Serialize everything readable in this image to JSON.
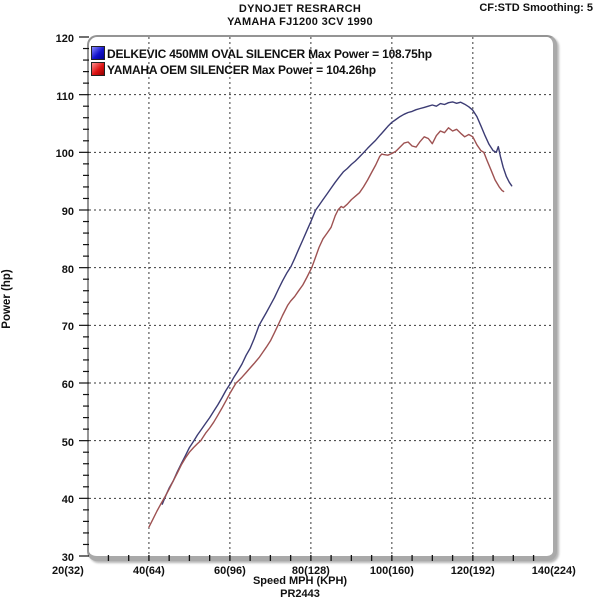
{
  "header": {
    "title": "DYNOJET RESRARCH",
    "subtitle": "YAMAHA FJ1200 3CV 1990",
    "smoothing": "CF:STD Smoothing: 5"
  },
  "chart_data": {
    "type": "line",
    "title": "DYNOJET RESRARCH",
    "subtitle": "YAMAHA FJ1200 3CV 1990",
    "xlabel": "Speed MPH (KPH)",
    "ylabel": "Power (hp)",
    "footer": "PR2443",
    "xlim": [
      25.2,
      139.8
    ],
    "ylim": [
      30,
      120
    ],
    "x_gridlines": [
      40,
      60,
      80,
      100,
      120
    ],
    "y_gridlines": [
      40,
      50,
      60,
      70,
      80,
      90,
      100,
      110
    ],
    "x_minor_step": 5,
    "y_minor_step": 2,
    "y_major_step": 10,
    "grid_color": "#3a3a3a",
    "x_ticks": [
      {
        "mph": 20,
        "label": "20(32)"
      },
      {
        "mph": 40,
        "label": "40(64)"
      },
      {
        "mph": 60,
        "label": "60(96)"
      },
      {
        "mph": 80,
        "label": "80(128)"
      },
      {
        "mph": 100,
        "label": "100(160)"
      },
      {
        "mph": 120,
        "label": "120(192)"
      },
      {
        "mph": 140,
        "label": "140(224)"
      }
    ],
    "y_tick_labels": [
      "120",
      "110",
      "100",
      "90",
      "80",
      "70",
      "60",
      "50",
      "40",
      "30"
    ],
    "legend": [
      {
        "text": "DELKEVIC 450MM OVAL SILENCER Max Power  = 108.75hp",
        "swatch": [
          "#8a8aff",
          "#1212cc",
          "#000090"
        ]
      },
      {
        "text": "YAMAHA OEM SILENCER Max Power = 104.26hp",
        "swatch": [
          "#ff9090",
          "#dd1212",
          "#8e0000"
        ]
      }
    ],
    "series": [
      {
        "name": "DELKEVIC 450MM OVAL SILENCER",
        "max_power_hp": 108.75,
        "color": "#3c3c74",
        "points": [
          [
            43.3,
            39
          ],
          [
            44,
            40.2
          ],
          [
            44.5,
            41
          ],
          [
            45,
            41.8
          ],
          [
            46,
            43
          ],
          [
            47,
            44.6
          ],
          [
            48,
            46
          ],
          [
            49,
            47.4
          ],
          [
            50,
            48.8
          ],
          [
            51.1,
            50
          ],
          [
            52,
            51
          ],
          [
            53,
            52
          ],
          [
            54,
            53
          ],
          [
            55,
            54
          ],
          [
            56,
            55.1
          ],
          [
            57,
            56.2
          ],
          [
            58,
            57.4
          ],
          [
            59,
            58.7
          ],
          [
            60.2,
            60
          ],
          [
            61,
            61
          ],
          [
            62,
            62.1
          ],
          [
            63,
            63.3
          ],
          [
            64,
            64.8
          ],
          [
            65,
            66
          ],
          [
            66,
            67.7
          ],
          [
            67.2,
            70
          ],
          [
            68,
            71
          ],
          [
            69,
            72.2
          ],
          [
            70,
            73.5
          ],
          [
            71,
            74.8
          ],
          [
            72,
            76.3
          ],
          [
            73,
            77.7
          ],
          [
            74,
            79
          ],
          [
            75.1,
            80.2
          ],
          [
            76,
            81.6
          ],
          [
            77,
            83.2
          ],
          [
            78,
            84.8
          ],
          [
            79,
            86.4
          ],
          [
            80,
            88
          ],
          [
            81.2,
            90
          ],
          [
            82,
            90.8
          ],
          [
            83,
            91.8
          ],
          [
            84,
            92.8
          ],
          [
            85,
            93.8
          ],
          [
            86,
            94.8
          ],
          [
            87,
            95.7
          ],
          [
            88,
            96.6
          ],
          [
            89,
            97.2
          ],
          [
            90,
            97.9
          ],
          [
            91,
            98.5
          ],
          [
            92,
            99.2
          ],
          [
            93.1,
            100
          ],
          [
            94,
            100.7
          ],
          [
            95,
            101.4
          ],
          [
            96,
            102.1
          ],
          [
            97,
            102.9
          ],
          [
            98,
            103.7
          ],
          [
            99,
            104.5
          ],
          [
            100,
            105.2
          ],
          [
            101,
            105.7
          ],
          [
            102,
            106.2
          ],
          [
            103,
            106.6
          ],
          [
            104,
            106.9
          ],
          [
            105,
            107.1
          ],
          [
            106,
            107.4
          ],
          [
            107,
            107.6
          ],
          [
            108,
            107.8
          ],
          [
            109,
            108
          ],
          [
            110,
            108.2
          ],
          [
            111,
            108
          ],
          [
            112,
            108.45
          ],
          [
            113,
            108.3
          ],
          [
            114,
            108.6
          ],
          [
            115,
            108.75
          ],
          [
            116,
            108.5
          ],
          [
            117,
            108.7
          ],
          [
            118,
            108.35
          ],
          [
            119,
            107.9
          ],
          [
            120,
            107.3
          ],
          [
            121,
            106.2
          ],
          [
            122,
            104.6
          ],
          [
            123,
            102.9
          ],
          [
            124,
            101.4
          ],
          [
            125,
            100.3
          ],
          [
            125.8,
            100
          ],
          [
            126.3,
            101
          ],
          [
            126.8,
            99.3
          ],
          [
            127.5,
            97.4
          ],
          [
            128.3,
            95.8
          ],
          [
            129,
            94.8
          ],
          [
            129.6,
            94.2
          ]
        ]
      },
      {
        "name": "YAMAHA OEM SILENCER",
        "max_power_hp": 104.26,
        "color": "#9e5252",
        "points": [
          [
            40,
            35
          ],
          [
            41,
            36.4
          ],
          [
            42,
            37.8
          ],
          [
            43,
            39.1
          ],
          [
            44,
            40.3
          ],
          [
            45,
            41.6
          ],
          [
            46,
            43
          ],
          [
            47,
            44.4
          ],
          [
            48,
            45.8
          ],
          [
            49,
            47
          ],
          [
            50,
            48
          ],
          [
            51,
            48.8
          ],
          [
            52,
            49.5
          ],
          [
            52.8,
            50
          ],
          [
            54,
            51.3
          ],
          [
            55,
            52.2
          ],
          [
            56,
            53.2
          ],
          [
            57,
            54.4
          ],
          [
            58,
            55.6
          ],
          [
            59,
            56.9
          ],
          [
            60,
            58.2
          ],
          [
            61.5,
            60
          ],
          [
            62,
            60.3
          ],
          [
            63,
            61
          ],
          [
            64,
            61.8
          ],
          [
            65,
            62.6
          ],
          [
            66,
            63.4
          ],
          [
            67.2,
            64.4
          ],
          [
            68,
            65.2
          ],
          [
            69,
            66.2
          ],
          [
            70,
            67.3
          ],
          [
            71,
            68.7
          ],
          [
            72,
            70.2
          ],
          [
            73,
            71.7
          ],
          [
            74.3,
            73.5
          ],
          [
            75,
            74.2
          ],
          [
            76,
            75
          ],
          [
            77,
            76
          ],
          [
            78,
            77
          ],
          [
            79,
            78.3
          ],
          [
            80.2,
            80
          ],
          [
            81,
            81.5
          ],
          [
            82,
            83.5
          ],
          [
            83,
            85
          ],
          [
            84,
            86
          ],
          [
            85,
            87
          ],
          [
            86,
            89
          ],
          [
            86.7,
            90
          ],
          [
            87.5,
            90.6
          ],
          [
            88,
            90.4
          ],
          [
            89,
            91
          ],
          [
            90,
            91.8
          ],
          [
            91,
            92.4
          ],
          [
            92,
            93
          ],
          [
            93,
            94
          ],
          [
            94,
            95.2
          ],
          [
            95,
            96.5
          ],
          [
            96,
            97.8
          ],
          [
            97,
            99.3
          ],
          [
            97.5,
            99.7
          ],
          [
            98,
            99.6
          ],
          [
            99,
            99.5
          ],
          [
            100,
            99.8
          ],
          [
            101,
            100.2
          ],
          [
            102,
            100.9
          ],
          [
            103,
            101.6
          ],
          [
            104,
            101.8
          ],
          [
            105,
            101.1
          ],
          [
            106,
            100.9
          ],
          [
            107,
            101.9
          ],
          [
            108,
            102.7
          ],
          [
            109,
            102.4
          ],
          [
            110,
            101.5
          ],
          [
            111,
            102.9
          ],
          [
            112,
            103.7
          ],
          [
            113,
            103.4
          ],
          [
            114,
            104.26
          ],
          [
            115,
            103.7
          ],
          [
            116,
            104
          ],
          [
            117,
            103.3
          ],
          [
            118,
            102.7
          ],
          [
            119,
            103.1
          ],
          [
            120,
            102.7
          ],
          [
            121,
            101.3
          ],
          [
            122,
            100.3
          ],
          [
            122.7,
            100
          ],
          [
            123.5,
            98.6
          ],
          [
            124.5,
            96.9
          ],
          [
            125.5,
            95.2
          ],
          [
            126.5,
            94
          ],
          [
            127.2,
            93.4
          ],
          [
            127.6,
            93.2
          ]
        ]
      }
    ]
  }
}
